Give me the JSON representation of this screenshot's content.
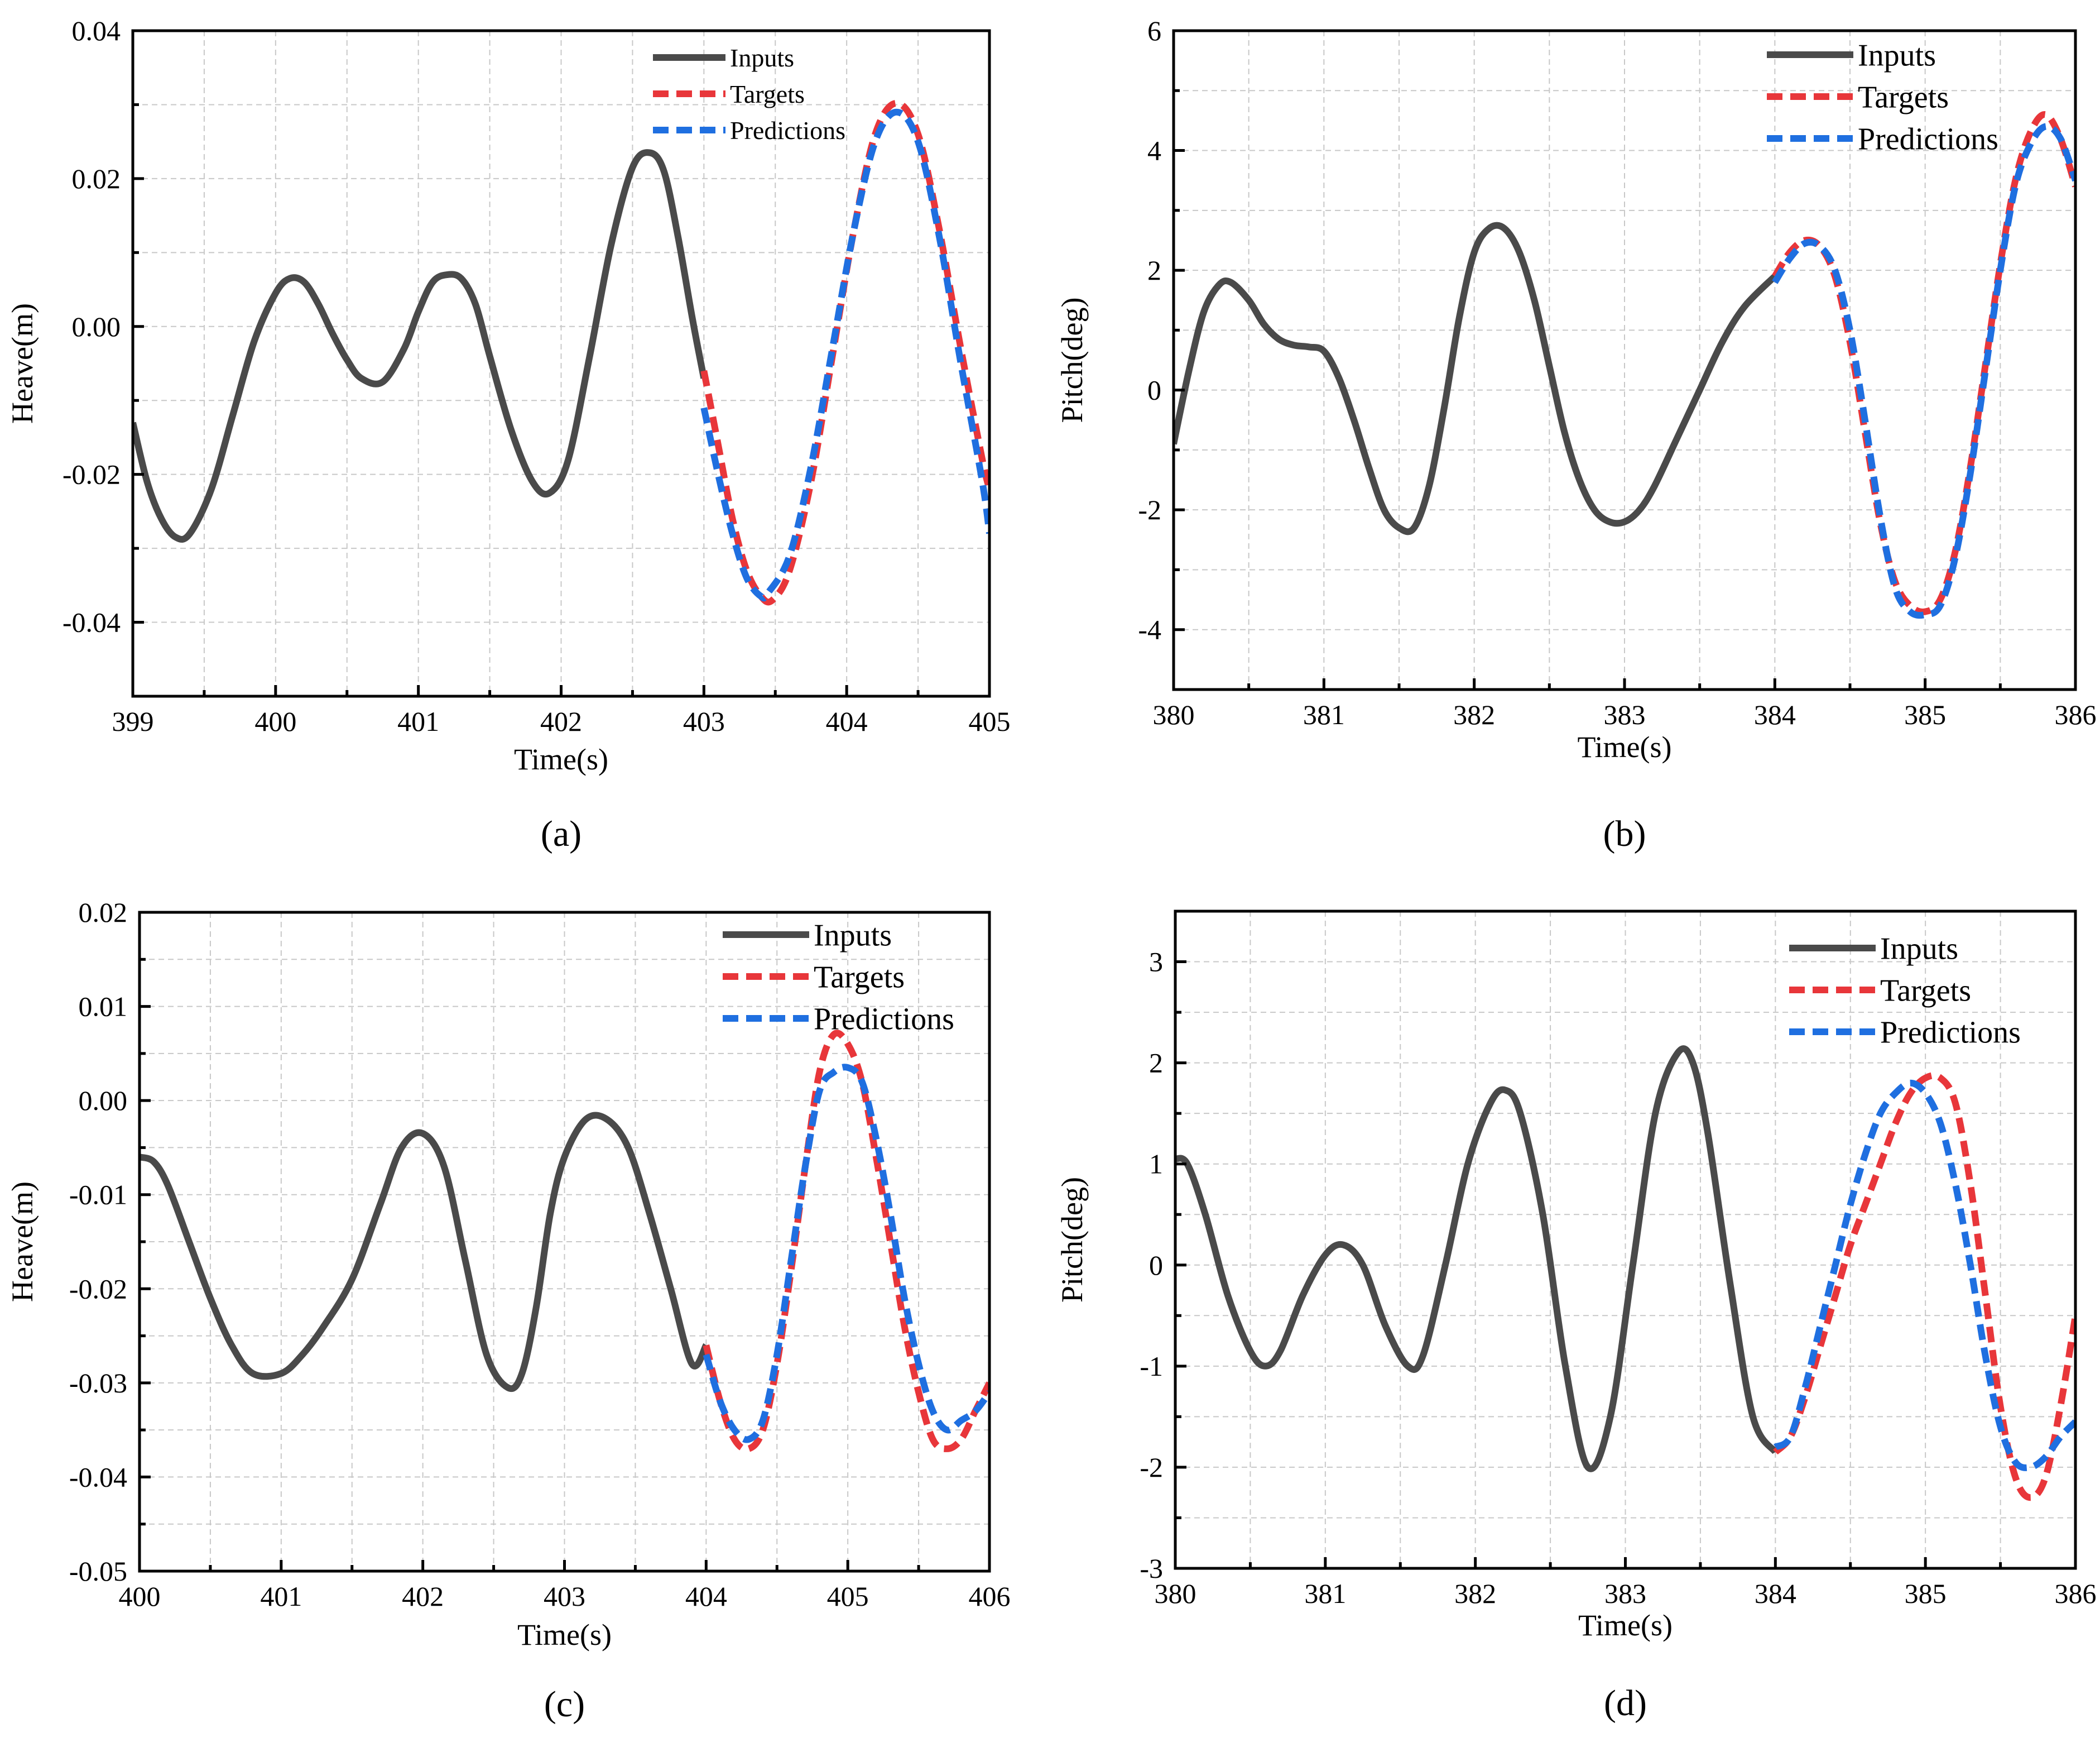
{
  "colors": {
    "inputs": "#4a4a4a",
    "targets": "#e8363a",
    "predictions": "#1f6fe0",
    "grid": "#c8c8c8",
    "axis": "#000000"
  },
  "chart_data": [
    {
      "id": "a",
      "type": "line",
      "caption": "(a)",
      "xlabel": "Time(s)",
      "ylabel": "Heave(m)",
      "xlim": [
        399,
        405
      ],
      "ylim": [
        -0.05,
        0.04
      ],
      "xticks": [
        399,
        400,
        401,
        402,
        403,
        404,
        405
      ],
      "xtick_labels": [
        "399",
        "400",
        "401",
        "402",
        "403",
        "404",
        "405"
      ],
      "yticks": [
        -0.04,
        -0.02,
        0.0,
        0.02,
        0.04
      ],
      "ytick_labels": [
        "-0.04",
        "-0.02",
        "0.00",
        "0.02",
        "0.04"
      ],
      "legend": {
        "position": "top-right",
        "size": "small",
        "entries": [
          "Inputs",
          "Targets",
          "Predictions"
        ]
      },
      "series": [
        {
          "name": "Inputs",
          "style": "solid",
          "color_key": "inputs",
          "x": [
            399.0,
            399.1,
            399.2,
            399.3,
            399.4,
            399.55,
            399.7,
            399.85,
            400.0,
            400.1,
            400.2,
            400.3,
            400.4,
            400.5,
            400.6,
            400.75,
            400.9,
            401.0,
            401.1,
            401.2,
            401.3,
            401.4,
            401.5,
            401.65,
            401.8,
            401.92,
            402.05,
            402.2,
            402.35,
            402.5,
            402.62,
            402.72,
            402.82,
            402.92,
            403.0
          ],
          "y": [
            -0.013,
            -0.021,
            -0.026,
            -0.0285,
            -0.028,
            -0.022,
            -0.012,
            -0.002,
            0.0045,
            0.0065,
            0.006,
            0.003,
            -0.001,
            -0.0045,
            -0.007,
            -0.0075,
            -0.003,
            0.002,
            0.006,
            0.007,
            0.0065,
            0.003,
            -0.004,
            -0.014,
            -0.021,
            -0.0225,
            -0.018,
            -0.004,
            0.011,
            0.0215,
            0.0235,
            0.021,
            0.012,
            0.001,
            -0.007
          ]
        },
        {
          "name": "Targets",
          "style": "dashed",
          "color_key": "targets",
          "x": [
            403.0,
            403.1,
            403.2,
            403.3,
            403.4,
            403.48,
            403.6,
            403.75,
            403.9,
            404.05,
            404.2,
            404.35,
            404.5,
            404.65,
            404.8,
            404.95,
            405.0
          ],
          "y": [
            -0.006,
            -0.016,
            -0.026,
            -0.033,
            -0.0365,
            -0.037,
            -0.033,
            -0.021,
            -0.004,
            0.013,
            0.026,
            0.0302,
            0.026,
            0.013,
            -0.003,
            -0.018,
            -0.022
          ]
        },
        {
          "name": "Predictions",
          "style": "dashed",
          "color_key": "predictions",
          "x": [
            403.0,
            403.1,
            403.2,
            403.3,
            403.4,
            403.45,
            403.6,
            403.75,
            403.9,
            404.05,
            404.2,
            404.35,
            404.5,
            404.65,
            404.8,
            404.95,
            405.0
          ],
          "y": [
            -0.011,
            -0.02,
            -0.028,
            -0.034,
            -0.0365,
            -0.036,
            -0.031,
            -0.019,
            -0.003,
            0.013,
            0.025,
            0.029,
            0.025,
            0.012,
            -0.005,
            -0.021,
            -0.028
          ]
        }
      ]
    },
    {
      "id": "b",
      "type": "line",
      "caption": "(b)",
      "xlabel": "Time(s)",
      "ylabel": "Pitch(deg)",
      "xlim": [
        380,
        386
      ],
      "ylim": [
        -5,
        6
      ],
      "xticks": [
        380,
        381,
        382,
        383,
        384,
        385,
        386
      ],
      "xtick_labels": [
        "380",
        "381",
        "382",
        "383",
        "384",
        "385",
        "386"
      ],
      "yticks": [
        -4,
        -2,
        0,
        2,
        4,
        6
      ],
      "ytick_labels": [
        "-4",
        "-2",
        "0",
        "2",
        "4",
        "6"
      ],
      "legend": {
        "position": "top-right",
        "size": "large",
        "entries": [
          "Inputs",
          "Targets",
          "Predictions"
        ]
      },
      "series": [
        {
          "name": "Inputs",
          "style": "solid",
          "color_key": "inputs",
          "x": [
            380.0,
            380.1,
            380.2,
            380.3,
            380.38,
            380.5,
            380.6,
            380.7,
            380.8,
            380.9,
            381.0,
            381.1,
            381.2,
            381.3,
            381.4,
            381.5,
            381.6,
            381.7,
            381.8,
            381.9,
            382.0,
            382.1,
            382.2,
            382.3,
            382.4,
            382.5,
            382.6,
            382.7,
            382.8,
            382.9,
            383.0,
            383.1,
            383.2,
            383.35,
            383.5,
            383.65,
            383.8,
            384.0
          ],
          "y": [
            -0.9,
            0.3,
            1.3,
            1.75,
            1.8,
            1.5,
            1.1,
            0.85,
            0.75,
            0.72,
            0.65,
            0.2,
            -0.5,
            -1.3,
            -2.0,
            -2.3,
            -2.3,
            -1.6,
            -0.3,
            1.2,
            2.3,
            2.7,
            2.7,
            2.3,
            1.5,
            0.4,
            -0.7,
            -1.5,
            -2.0,
            -2.2,
            -2.2,
            -2.0,
            -1.6,
            -0.8,
            0.0,
            0.8,
            1.4,
            1.9
          ]
        },
        {
          "name": "Targets",
          "style": "dashed",
          "color_key": "targets",
          "x": [
            384.0,
            384.1,
            384.2,
            384.3,
            384.4,
            384.5,
            384.6,
            384.7,
            384.8,
            384.9,
            385.0,
            385.1,
            385.2,
            385.3,
            385.4,
            385.5,
            385.6,
            385.7,
            385.8,
            385.9,
            386.0
          ],
          "y": [
            1.9,
            2.3,
            2.5,
            2.4,
            1.9,
            0.8,
            -0.7,
            -2.2,
            -3.2,
            -3.6,
            -3.7,
            -3.5,
            -2.7,
            -1.3,
            0.4,
            2.1,
            3.5,
            4.3,
            4.6,
            4.2,
            3.4
          ]
        },
        {
          "name": "Predictions",
          "style": "dashed",
          "color_key": "predictions",
          "x": [
            384.0,
            384.1,
            384.2,
            384.3,
            384.4,
            384.5,
            384.6,
            384.7,
            384.8,
            384.9,
            385.0,
            385.1,
            385.2,
            385.3,
            385.4,
            385.5,
            385.6,
            385.7,
            385.8,
            385.9,
            386.0
          ],
          "y": [
            1.8,
            2.2,
            2.45,
            2.4,
            2.0,
            1.0,
            -0.5,
            -2.1,
            -3.3,
            -3.7,
            -3.75,
            -3.6,
            -2.8,
            -1.4,
            0.3,
            2.0,
            3.4,
            4.1,
            4.4,
            4.2,
            3.5
          ]
        }
      ]
    },
    {
      "id": "c",
      "type": "line",
      "caption": "(c)",
      "xlabel": "Time(s)",
      "ylabel": "Heave(m)",
      "xlim": [
        400,
        406
      ],
      "ylim": [
        -0.05,
        0.02
      ],
      "xticks": [
        400,
        401,
        402,
        403,
        404,
        405,
        406
      ],
      "xtick_labels": [
        "400",
        "401",
        "402",
        "403",
        "404",
        "405",
        "406"
      ],
      "yticks": [
        -0.05,
        -0.04,
        -0.03,
        -0.02,
        -0.01,
        0.0,
        0.01,
        0.02
      ],
      "ytick_labels": [
        "-0.05",
        "-0.04",
        "-0.03",
        "-0.02",
        "-0.01",
        "0.00",
        "0.01",
        "0.02"
      ],
      "legend": {
        "position": "top-right",
        "size": "large",
        "entries": [
          "Inputs",
          "Targets",
          "Predictions"
        ]
      },
      "series": [
        {
          "name": "Inputs",
          "style": "solid",
          "color_key": "inputs",
          "x": [
            400.0,
            400.1,
            400.2,
            400.35,
            400.5,
            400.65,
            400.8,
            401.0,
            401.15,
            401.3,
            401.5,
            401.7,
            401.85,
            402.0,
            402.15,
            402.3,
            402.45,
            402.6,
            402.7,
            402.8,
            402.9,
            403.0,
            403.15,
            403.3,
            403.45,
            403.6,
            403.75,
            403.9,
            404.0
          ],
          "y": [
            -0.006,
            -0.0065,
            -0.009,
            -0.015,
            -0.021,
            -0.026,
            -0.029,
            -0.029,
            -0.027,
            -0.024,
            -0.019,
            -0.011,
            -0.005,
            -0.0035,
            -0.007,
            -0.017,
            -0.027,
            -0.0305,
            -0.029,
            -0.022,
            -0.012,
            -0.006,
            -0.002,
            -0.002,
            -0.005,
            -0.012,
            -0.02,
            -0.028,
            -0.026
          ]
        },
        {
          "name": "Targets",
          "style": "dashed",
          "color_key": "targets",
          "x": [
            404.0,
            404.1,
            404.2,
            404.3,
            404.4,
            404.5,
            404.6,
            404.7,
            404.8,
            404.9,
            405.0,
            405.1,
            405.2,
            405.3,
            405.4,
            405.5,
            405.6,
            405.7,
            405.8,
            405.9,
            406.0
          ],
          "y": [
            -0.026,
            -0.032,
            -0.036,
            -0.037,
            -0.035,
            -0.028,
            -0.018,
            -0.007,
            0.003,
            0.007,
            0.006,
            0.002,
            -0.006,
            -0.015,
            -0.024,
            -0.031,
            -0.036,
            -0.037,
            -0.036,
            -0.033,
            -0.03
          ]
        },
        {
          "name": "Predictions",
          "style": "dashed",
          "color_key": "predictions",
          "x": [
            404.0,
            404.1,
            404.2,
            404.3,
            404.4,
            404.5,
            404.6,
            404.7,
            404.8,
            404.9,
            405.0,
            405.1,
            405.2,
            405.3,
            405.4,
            405.5,
            405.6,
            405.7,
            405.8,
            405.9,
            406.0
          ],
          "y": [
            -0.027,
            -0.032,
            -0.035,
            -0.036,
            -0.034,
            -0.027,
            -0.017,
            -0.007,
            0.001,
            0.003,
            0.0035,
            0.002,
            -0.004,
            -0.012,
            -0.021,
            -0.028,
            -0.033,
            -0.035,
            -0.034,
            -0.033,
            -0.031
          ]
        }
      ]
    },
    {
      "id": "d",
      "type": "line",
      "caption": "(d)",
      "xlabel": "Time(s)",
      "ylabel": "Pitch(deg)",
      "xlim": [
        380,
        386
      ],
      "ylim": [
        -3,
        3.5
      ],
      "xticks": [
        380,
        381,
        382,
        383,
        384,
        385,
        386
      ],
      "xtick_labels": [
        "380",
        "381",
        "382",
        "383",
        "384",
        "385",
        "386"
      ],
      "yticks": [
        -3,
        -2,
        -1,
        0,
        1,
        2,
        3
      ],
      "ytick_labels": [
        "-3",
        "-2",
        "-1",
        "0",
        "1",
        "2",
        "3"
      ],
      "legend": {
        "position": "top-right",
        "size": "large",
        "entries": [
          "Inputs",
          "Targets",
          "Predictions"
        ]
      },
      "series": [
        {
          "name": "Inputs",
          "style": "solid",
          "color_key": "inputs",
          "x": [
            380.0,
            380.08,
            380.2,
            380.35,
            380.5,
            380.6,
            380.7,
            380.85,
            381.0,
            381.12,
            381.25,
            381.4,
            381.55,
            381.65,
            381.8,
            381.95,
            382.1,
            382.2,
            382.3,
            382.45,
            382.6,
            382.75,
            382.9,
            383.05,
            383.2,
            383.35,
            383.45,
            383.55,
            383.7,
            383.85,
            384.0
          ],
          "y": [
            1.05,
            1.0,
            0.5,
            -0.3,
            -0.85,
            -1.0,
            -0.85,
            -0.3,
            0.1,
            0.2,
            0.0,
            -0.6,
            -1.0,
            -0.9,
            0.0,
            1.0,
            1.6,
            1.73,
            1.5,
            0.5,
            -1.0,
            -2.0,
            -1.5,
            0.0,
            1.5,
            2.1,
            2.0,
            1.3,
            -0.2,
            -1.5,
            -1.85
          ]
        },
        {
          "name": "Targets",
          "style": "dashed",
          "color_key": "targets",
          "x": [
            384.0,
            384.1,
            384.2,
            384.3,
            384.4,
            384.5,
            384.6,
            384.7,
            384.8,
            384.9,
            385.0,
            385.1,
            385.2,
            385.3,
            385.4,
            385.5,
            385.6,
            385.7,
            385.8,
            385.9,
            386.0
          ],
          "y": [
            -1.85,
            -1.7,
            -1.3,
            -0.8,
            -0.3,
            0.2,
            0.6,
            1.0,
            1.4,
            1.7,
            1.85,
            1.85,
            1.6,
            0.8,
            -0.3,
            -1.4,
            -2.1,
            -2.3,
            -2.1,
            -1.4,
            -0.5
          ]
        },
        {
          "name": "Predictions",
          "style": "dashed",
          "color_key": "predictions",
          "x": [
            384.0,
            384.1,
            384.2,
            384.3,
            384.4,
            384.5,
            384.6,
            384.7,
            384.8,
            384.9,
            385.0,
            385.1,
            385.2,
            385.3,
            385.4,
            385.5,
            385.6,
            385.7,
            385.8,
            385.9,
            386.0
          ],
          "y": [
            -1.8,
            -1.7,
            -1.2,
            -0.6,
            0.0,
            0.6,
            1.1,
            1.5,
            1.7,
            1.8,
            1.7,
            1.4,
            0.8,
            0.0,
            -0.9,
            -1.6,
            -1.95,
            -2.0,
            -1.9,
            -1.7,
            -1.55
          ]
        }
      ]
    }
  ]
}
